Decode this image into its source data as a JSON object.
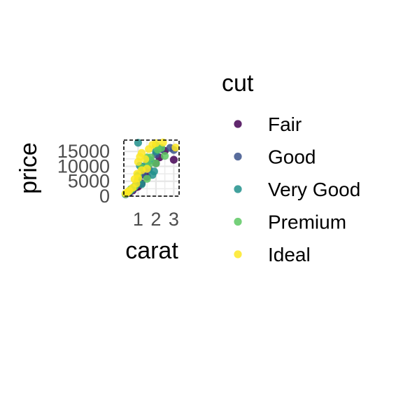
{
  "chart_data": {
    "type": "scatter",
    "xlabel": "carat",
    "ylabel": "price",
    "xlim": [
      0.2,
      3.3
    ],
    "ylim": [
      0,
      18800
    ],
    "xticks": [
      1,
      2,
      3
    ],
    "yticks": [
      0,
      5000,
      10000,
      15000
    ],
    "grid": true,
    "legend": {
      "title": "cut",
      "position": "right"
    },
    "series": [
      {
        "name": "Fair",
        "color": "#440154",
        "points": [
          [
            0.5,
            1100
          ],
          [
            0.7,
            1900
          ],
          [
            0.9,
            3000
          ],
          [
            1.0,
            3200
          ],
          [
            1.2,
            4300
          ],
          [
            1.5,
            6500
          ],
          [
            2.0,
            11000
          ],
          [
            2.2,
            13000
          ],
          [
            2.5,
            15200
          ],
          [
            3.0,
            12200
          ]
        ]
      },
      {
        "name": "Good",
        "color": "#3b528b",
        "points": [
          [
            0.3,
            600
          ],
          [
            0.5,
            1400
          ],
          [
            0.7,
            2400
          ],
          [
            0.9,
            3600
          ],
          [
            1.0,
            4500
          ],
          [
            1.1,
            6800
          ],
          [
            1.3,
            7200
          ],
          [
            1.6,
            9000
          ],
          [
            2.0,
            14000
          ],
          [
            2.3,
            15800
          ],
          [
            2.8,
            16200
          ],
          [
            3.0,
            15500
          ]
        ]
      },
      {
        "name": "Very Good",
        "color": "#21908c",
        "points": [
          [
            0.3,
            700
          ],
          [
            0.5,
            1600
          ],
          [
            0.6,
            2000
          ],
          [
            0.8,
            3200
          ],
          [
            1.0,
            5600
          ],
          [
            1.1,
            10200
          ],
          [
            1.2,
            9800
          ],
          [
            1.5,
            11000
          ],
          [
            1.7,
            12000
          ],
          [
            2.0,
            15000
          ],
          [
            1.0,
            17900
          ],
          [
            1.9,
            8300
          ],
          [
            1.8,
            7100
          ],
          [
            1.2,
            4000
          ]
        ]
      },
      {
        "name": "Premium",
        "color": "#5dc863",
        "points": [
          [
            0.3,
            800
          ],
          [
            0.5,
            1700
          ],
          [
            0.6,
            2400
          ],
          [
            0.8,
            3100
          ],
          [
            1.0,
            7000
          ],
          [
            1.2,
            9500
          ],
          [
            1.5,
            13000
          ],
          [
            2.0,
            17000
          ],
          [
            2.3,
            16200
          ],
          [
            2.0,
            11000
          ],
          [
            1.6,
            10500
          ],
          [
            1.5,
            5800
          ],
          [
            2.5,
            13500
          ],
          [
            1.7,
            13000
          ],
          [
            2.1,
            15600
          ]
        ]
      },
      {
        "name": "Ideal",
        "color": "#fde725",
        "points": [
          [
            0.3,
            900
          ],
          [
            0.4,
            1300
          ],
          [
            0.5,
            1800
          ],
          [
            0.7,
            2800
          ],
          [
            0.9,
            4200
          ],
          [
            1.0,
            6000
          ],
          [
            1.0,
            11500
          ],
          [
            1.1,
            13200
          ],
          [
            1.2,
            14500
          ],
          [
            1.4,
            12400
          ],
          [
            1.6,
            15800
          ],
          [
            1.8,
            17200
          ],
          [
            2.0,
            17800
          ],
          [
            2.4,
            18000
          ],
          [
            3.1,
            16300
          ],
          [
            1.2,
            8700
          ],
          [
            1.5,
            9200
          ],
          [
            0.8,
            5700
          ],
          [
            0.95,
            7500
          ]
        ]
      }
    ]
  }
}
